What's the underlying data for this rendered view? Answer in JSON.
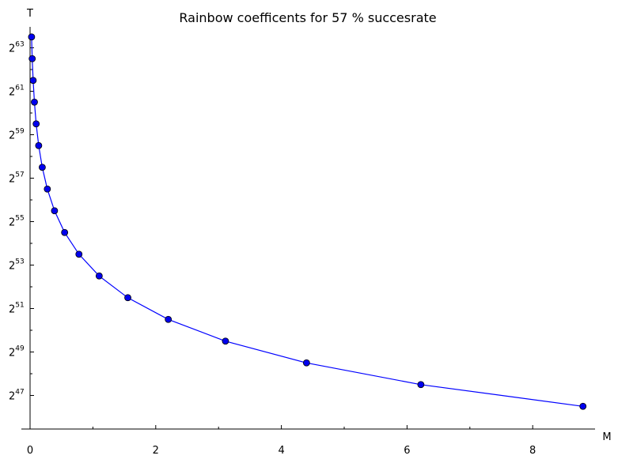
{
  "chart_data": {
    "type": "line",
    "title": "Rainbow coefficents for 57 % succesrate",
    "xlabel": "M",
    "ylabel": "T",
    "y_scale": "log2",
    "xlim": [
      0,
      8.9
    ],
    "x_ticks": [
      0,
      2,
      4,
      6,
      8
    ],
    "y_ticks": [
      {
        "base": "2",
        "exp": "47",
        "value_log2": 47
      },
      {
        "base": "2",
        "exp": "49",
        "value_log2": 49
      },
      {
        "base": "2",
        "exp": "51",
        "value_log2": 51
      },
      {
        "base": "2",
        "exp": "53",
        "value_log2": 53
      },
      {
        "base": "2",
        "exp": "55",
        "value_log2": 55
      },
      {
        "base": "2",
        "exp": "57",
        "value_log2": 57
      },
      {
        "base": "2",
        "exp": "59",
        "value_log2": 59
      },
      {
        "base": "2",
        "exp": "61",
        "value_log2": 61
      },
      {
        "base": "2",
        "exp": "63",
        "value_log2": 63
      }
    ],
    "grid": false,
    "colors": {
      "line": "#0000ff",
      "marker": "#0000ee"
    },
    "series": [
      {
        "points": [
          {
            "x": 0.024,
            "y_log2": 63.5
          },
          {
            "x": 0.034,
            "y_log2": 62.5
          },
          {
            "x": 0.049,
            "y_log2": 61.5
          },
          {
            "x": 0.069,
            "y_log2": 60.5
          },
          {
            "x": 0.097,
            "y_log2": 59.5
          },
          {
            "x": 0.137,
            "y_log2": 58.5
          },
          {
            "x": 0.194,
            "y_log2": 57.5
          },
          {
            "x": 0.275,
            "y_log2": 56.5
          },
          {
            "x": 0.389,
            "y_log2": 55.5
          },
          {
            "x": 0.55,
            "y_log2": 54.5
          },
          {
            "x": 0.778,
            "y_log2": 53.5
          },
          {
            "x": 1.1,
            "y_log2": 52.5
          },
          {
            "x": 1.556,
            "y_log2": 51.5
          },
          {
            "x": 2.2,
            "y_log2": 50.5
          },
          {
            "x": 3.11,
            "y_log2": 49.5
          },
          {
            "x": 4.4,
            "y_log2": 48.5
          },
          {
            "x": 6.22,
            "y_log2": 47.5
          },
          {
            "x": 8.8,
            "y_log2": 46.5
          }
        ]
      }
    ]
  }
}
